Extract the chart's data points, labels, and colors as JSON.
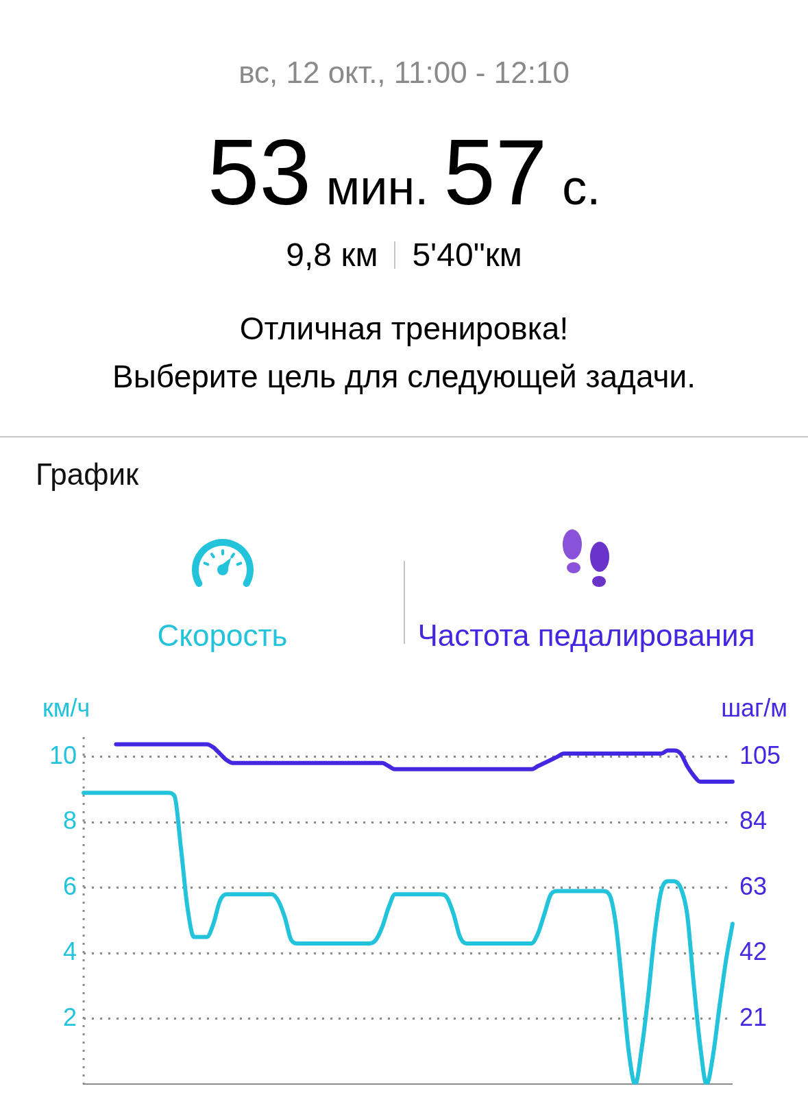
{
  "chart_data": [
    {
      "type": "other",
      "title": "вс, 12 окт., 11:00 - 12:10",
      "annotations": [
        "53 мин. 57 с.",
        "9,8 км",
        "5'40\"км",
        "Отличная тренировка!",
        "Выберите цель для следующей задачи."
      ]
    },
    {
      "type": "line",
      "title": "График",
      "categories": [
        null,
        null,
        null,
        null,
        null,
        null,
        null,
        null,
        null,
        null,
        null,
        null,
        null,
        null,
        null,
        null,
        null,
        null,
        null,
        null,
        null,
        null,
        null,
        null,
        null,
        null,
        null,
        null,
        null,
        null,
        null,
        null,
        null,
        null,
        null,
        null,
        null,
        null,
        null,
        null,
        null,
        null,
        null,
        null,
        null,
        null,
        null,
        null,
        null,
        null,
        null,
        null,
        null,
        null,
        null,
        null,
        null,
        null,
        null,
        null,
        null,
        null,
        null,
        null,
        null,
        null,
        null,
        null,
        null,
        null,
        null,
        null,
        null,
        null,
        null,
        null,
        null,
        null,
        null,
        null,
        null,
        null,
        null,
        null,
        null,
        null,
        null,
        null,
        null,
        null,
        null,
        null,
        null,
        null,
        null,
        null,
        null,
        null,
        null,
        null,
        null
      ],
      "series": [
        {
          "name": "Скорость",
          "color": "#24c3dc",
          "values": [
            8.9,
            8.9,
            8.9,
            8.9,
            8.9,
            8.9,
            8.9,
            8.9,
            8.9,
            8.9,
            8.9,
            8.9,
            8.9,
            8.9,
            8.8,
            7.2,
            5.4,
            4.5,
            4.5,
            4.5,
            4.9,
            5.6,
            5.8,
            5.8,
            5.8,
            5.8,
            5.8,
            5.8,
            5.8,
            5.8,
            5.6,
            5.1,
            4.4,
            4.3,
            4.3,
            4.3,
            4.3,
            4.3,
            4.3,
            4.3,
            4.3,
            4.3,
            4.3,
            4.3,
            4.3,
            4.4,
            4.8,
            5.4,
            5.8,
            5.8,
            5.8,
            5.8,
            5.8,
            5.8,
            5.8,
            5.8,
            5.7,
            5.2,
            4.5,
            4.3,
            4.3,
            4.3,
            4.3,
            4.3,
            4.3,
            4.3,
            4.3,
            4.3,
            4.3,
            4.3,
            4.6,
            5.2,
            5.8,
            5.9,
            5.9,
            5.9,
            5.9,
            5.9,
            5.9,
            5.9,
            5.9,
            5.8,
            4.9,
            3.0,
            1.0,
            0,
            1.1,
            2.7,
            4.6,
            5.9,
            6.2,
            6.2,
            6.0,
            5.2,
            3.1,
            1.2,
            0,
            0.9,
            2.4,
            3.8,
            4.9
          ]
        },
        {
          "name": "Частота педалирования",
          "color": "#4427e0",
          "axis": "y2",
          "values": [
            null,
            null,
            null,
            null,
            null,
            109,
            109,
            109,
            109,
            109,
            109,
            109,
            109,
            109,
            109,
            109,
            109,
            109,
            109,
            109,
            108,
            106,
            104,
            103,
            103,
            103,
            103,
            103,
            103,
            103,
            103,
            103,
            103,
            103,
            103,
            103,
            103,
            103,
            103,
            103,
            103,
            103,
            103,
            103,
            103,
            103,
            103,
            102,
            101,
            101,
            101,
            101,
            101,
            101,
            101,
            101,
            101,
            101,
            101,
            101,
            101,
            101,
            101,
            101,
            101,
            101,
            101,
            101,
            101,
            101,
            102,
            103,
            104,
            105,
            106,
            106,
            106,
            106,
            106,
            106,
            106,
            106,
            106,
            106,
            106,
            106,
            106,
            106,
            106,
            106,
            107,
            107,
            106,
            102,
            99,
            97,
            97,
            97,
            97,
            97,
            97
          ]
        }
      ],
      "ylabel": "км/ч",
      "y2label": "шаг/м",
      "ylim": [
        0,
        10.6
      ],
      "yticks": [
        2,
        4,
        6,
        8,
        10
      ],
      "y2lim": [
        0,
        111.3
      ],
      "y2ticks": [
        21,
        42,
        63,
        84,
        105
      ],
      "grid": "y",
      "legend": "top",
      "marker": "none",
      "line_style": "solid"
    }
  ]
}
